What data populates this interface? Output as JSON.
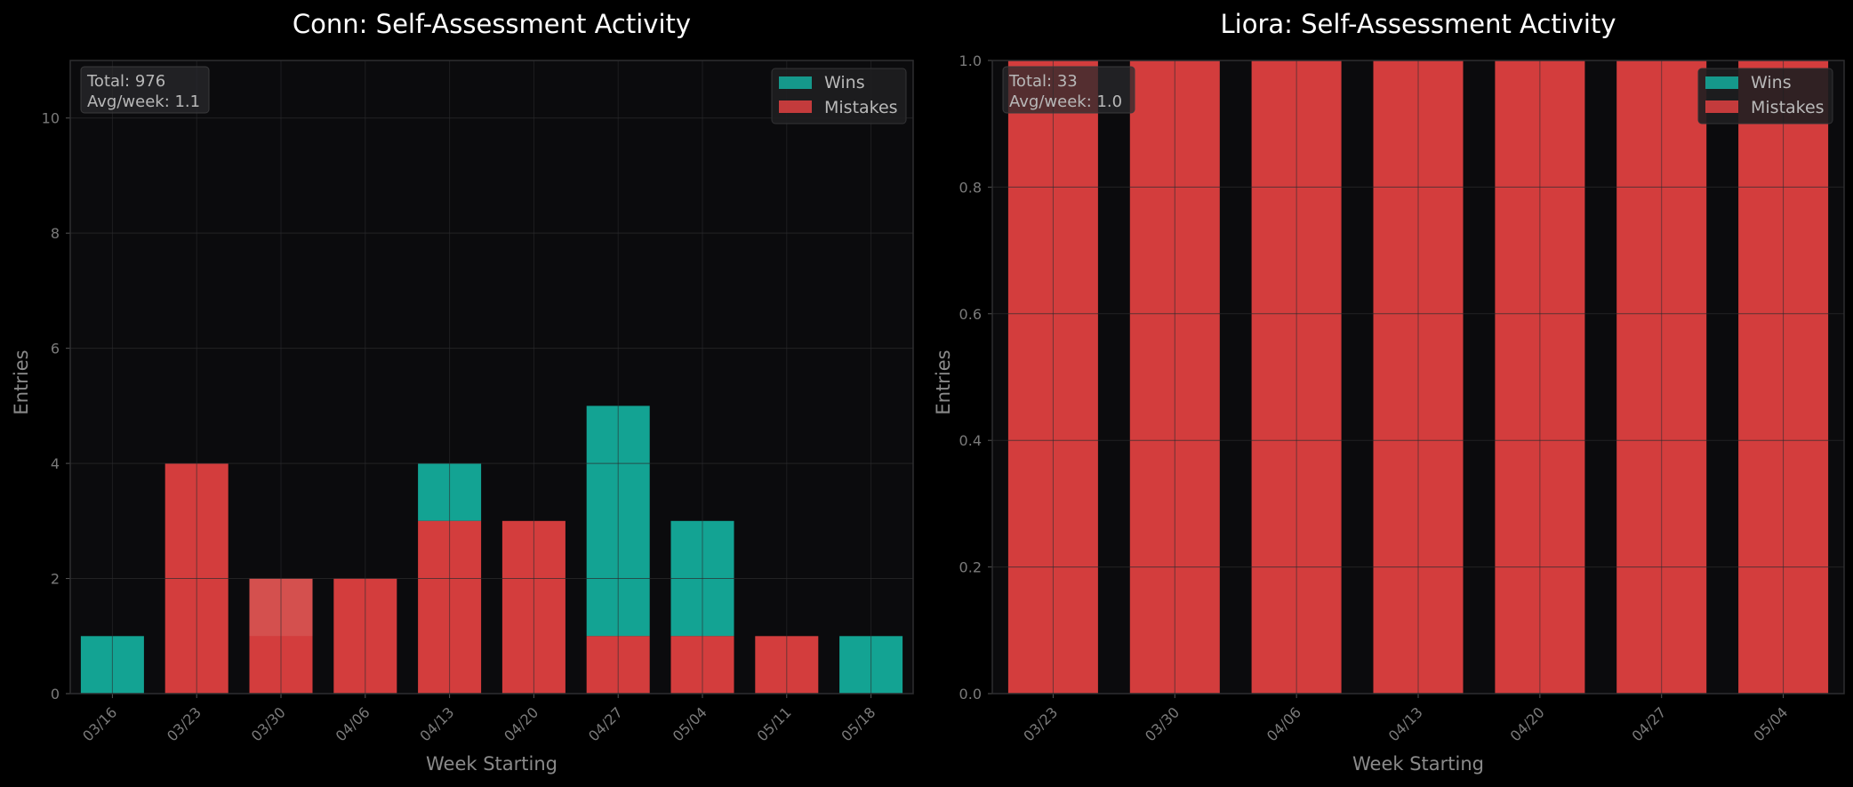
{
  "colors": {
    "background": "#000000",
    "plot_background": "#0b0b0d",
    "wins": "#14b8a6",
    "mistakes": "#ef4444",
    "grid": "#2c2c2e",
    "spine": "#2e2e30"
  },
  "legend": {
    "wins_label": "Wins",
    "mistakes_label": "Mistakes",
    "placement": "top-right"
  },
  "chart_data": [
    {
      "type": "bar",
      "title": "Conn: Self-Assessment Activity",
      "xlabel": "Week Starting",
      "ylabel": "Entries",
      "ylim": [
        0,
        11
      ],
      "yticks": [
        "0",
        "2",
        "4",
        "6",
        "8",
        "10"
      ],
      "stats": {
        "total": "Total: 976",
        "avg": "Avg/week: 1.1"
      },
      "categories": [
        "03/16",
        "03/23",
        "03/30",
        "04/06",
        "04/13",
        "04/20",
        "04/27",
        "05/04",
        "05/11",
        "05/18"
      ],
      "series": [
        {
          "name": "Wins",
          "color": "#14b8a6",
          "values": [
            1,
            0,
            1,
            0,
            1,
            0,
            4,
            2,
            0,
            1
          ],
          "bottoms": [
            0,
            0,
            1,
            0,
            3,
            0,
            1,
            1,
            0,
            0
          ]
        },
        {
          "name": "Mistakes",
          "color": "#ef4444",
          "values": [
            0,
            4,
            2,
            2,
            3,
            3,
            1,
            1,
            1,
            0
          ],
          "bottoms": [
            0,
            0,
            0,
            0,
            0,
            0,
            0,
            0,
            0,
            0
          ]
        }
      ],
      "grid": true
    },
    {
      "type": "bar",
      "title": "Liora: Self-Assessment Activity",
      "xlabel": "Week Starting",
      "ylabel": "Entries",
      "ylim": [
        0,
        1
      ],
      "yticks": [
        "0.0",
        "0.2",
        "0.4",
        "0.6",
        "0.8",
        "1.0"
      ],
      "stats": {
        "total": "Total: 33",
        "avg": "Avg/week: 1.0"
      },
      "categories": [
        "03/23",
        "03/30",
        "04/06",
        "04/13",
        "04/20",
        "04/27",
        "05/04"
      ],
      "series": [
        {
          "name": "Wins",
          "color": "#14b8a6",
          "values": [
            0,
            0,
            0,
            0,
            0,
            0,
            0
          ],
          "bottoms": [
            0,
            0,
            0,
            0,
            0,
            0,
            0
          ]
        },
        {
          "name": "Mistakes",
          "color": "#ef4444",
          "values": [
            1,
            1,
            1,
            1,
            1,
            1,
            1
          ],
          "bottoms": [
            0,
            0,
            0,
            0,
            0,
            0,
            0
          ]
        }
      ],
      "grid": true
    }
  ]
}
